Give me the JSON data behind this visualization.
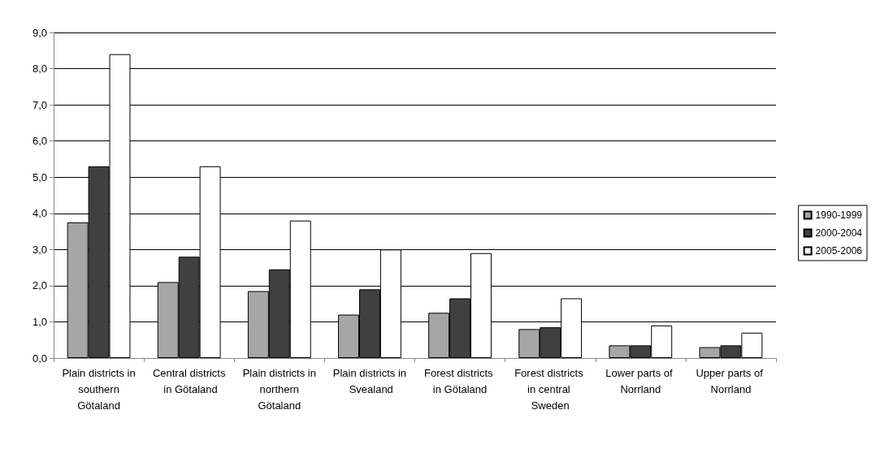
{
  "chart_data": {
    "type": "bar",
    "categories": [
      "Plain districts in southern Götaland",
      "Central districts in Götaland",
      "Plain districts in northern Götaland",
      "Plain districts in Svealand",
      "Forest districts in Götaland",
      "Forest districts in central Sweden",
      "Lower parts of Norrland",
      "Upper parts of Norrland"
    ],
    "series": [
      {
        "name": "1990-1999",
        "color": "#a6a6a6",
        "values": [
          3.75,
          2.1,
          1.85,
          1.2,
          1.25,
          0.8,
          0.35,
          0.3
        ]
      },
      {
        "name": "2000-2004",
        "color": "#404040",
        "values": [
          5.3,
          2.8,
          2.45,
          1.9,
          1.65,
          0.85,
          0.35,
          0.35
        ]
      },
      {
        "name": "2005-2006",
        "color": "#ffffff",
        "values": [
          8.4,
          5.3,
          3.8,
          3.0,
          2.9,
          1.65,
          0.9,
          0.7
        ]
      }
    ],
    "ylim": [
      0,
      9
    ],
    "yticks": [
      {
        "value": 0,
        "label": "0,0"
      },
      {
        "value": 1,
        "label": "1,0"
      },
      {
        "value": 2,
        "label": "2,0"
      },
      {
        "value": 3,
        "label": "3,0"
      },
      {
        "value": 4,
        "label": "4,0"
      },
      {
        "value": 5,
        "label": "5,0"
      },
      {
        "value": 6,
        "label": "6,0"
      },
      {
        "value": 7,
        "label": "7,0"
      },
      {
        "value": 8,
        "label": "8,0"
      },
      {
        "value": 9,
        "label": "9,0"
      }
    ],
    "grid": "y",
    "legend": "right"
  }
}
